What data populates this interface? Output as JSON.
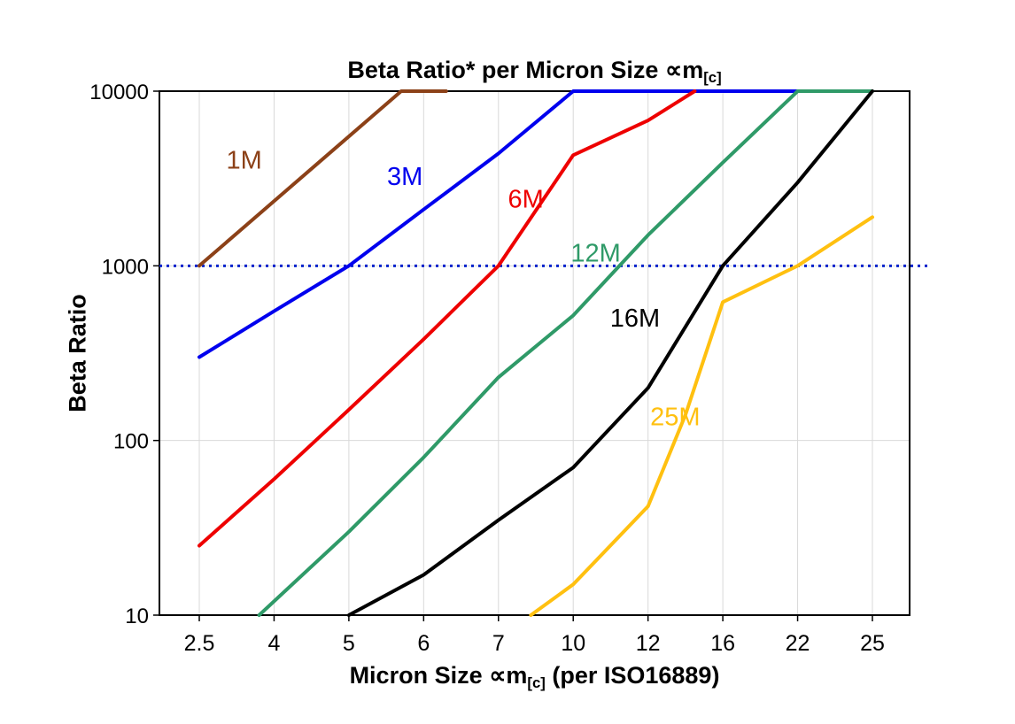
{
  "title": {
    "main": "Beta Ratio* per Micron Size ∝m",
    "sub": "[c]"
  },
  "y_axis": {
    "label": "Beta Ratio",
    "tick_labels": [
      "10000",
      "1000",
      "100",
      "10"
    ]
  },
  "x_axis": {
    "label_pre": "Micron Size ∝m",
    "label_sub": "[c]",
    "label_post": " (per ISO16889)",
    "tick_labels": [
      "2.5",
      "4",
      "5",
      "6",
      "7",
      "10",
      "12",
      "16",
      "22",
      "25"
    ]
  },
  "chart_data": {
    "type": "line",
    "title": "Beta Ratio* per Micron Size ∝m[c]",
    "xlabel": "Micron Size ∝m[c] (per ISO16889)",
    "ylabel": "Beta Ratio",
    "x_categories": [
      2.5,
      4,
      5,
      6,
      7,
      10,
      12,
      16,
      22,
      25
    ],
    "y_scale": "log",
    "ylim": [
      10,
      10000
    ],
    "gridlines_y": [
      100,
      1000
    ],
    "grid_vertical": true,
    "legend": "inline-labels",
    "reference_line": {
      "y": 1000,
      "color": "#0022CC",
      "style": "dotted"
    },
    "series": [
      {
        "name": "1M",
        "color": "#8C4118",
        "width": 4,
        "points": [
          [
            2.5,
            1000
          ],
          [
            5.7,
            10000
          ],
          [
            6.3,
            10000
          ]
        ],
        "label_at": [
          3.4,
          3600
        ]
      },
      {
        "name": "3M",
        "color": "#0000EE",
        "width": 4,
        "points": [
          [
            2.5,
            300
          ],
          [
            4,
            550
          ],
          [
            5,
            1000
          ],
          [
            6,
            2100
          ],
          [
            7,
            4400
          ],
          [
            10,
            10000
          ],
          [
            22,
            10000
          ]
        ],
        "label_at": [
          5.75,
          2900
        ]
      },
      {
        "name": "6M",
        "color": "#EE0000",
        "width": 4,
        "points": [
          [
            2.5,
            25
          ],
          [
            4,
            60
          ],
          [
            5,
            150
          ],
          [
            6,
            380
          ],
          [
            7,
            1000
          ],
          [
            10,
            4300
          ],
          [
            12,
            6800
          ],
          [
            14.5,
            10000
          ]
        ],
        "label_at": [
          8.1,
          2150
        ]
      },
      {
        "name": "12M",
        "color": "#2F9A68",
        "width": 4,
        "points": [
          [
            3.7,
            10
          ],
          [
            5,
            30
          ],
          [
            6,
            80
          ],
          [
            7,
            230
          ],
          [
            10,
            520
          ],
          [
            12,
            1500
          ],
          [
            16,
            3900
          ],
          [
            22,
            10000
          ],
          [
            25,
            10000
          ]
        ],
        "label_at": [
          10.6,
          1060
        ]
      },
      {
        "name": "16M",
        "color": "#000000",
        "width": 4,
        "points": [
          [
            5,
            10
          ],
          [
            6,
            17
          ],
          [
            7,
            35
          ],
          [
            10,
            70
          ],
          [
            12,
            200
          ],
          [
            16,
            1000
          ],
          [
            22,
            3000
          ],
          [
            25,
            10000
          ]
        ],
        "label_at": [
          11.65,
          450
        ]
      },
      {
        "name": "25M",
        "color": "#FFC010",
        "width": 4,
        "points": [
          [
            8.3,
            10
          ],
          [
            10,
            15
          ],
          [
            12,
            42
          ],
          [
            14,
            140
          ],
          [
            16,
            620
          ],
          [
            22,
            1000
          ],
          [
            25,
            1900
          ]
        ],
        "label_at": [
          13.45,
          122
        ]
      }
    ]
  }
}
